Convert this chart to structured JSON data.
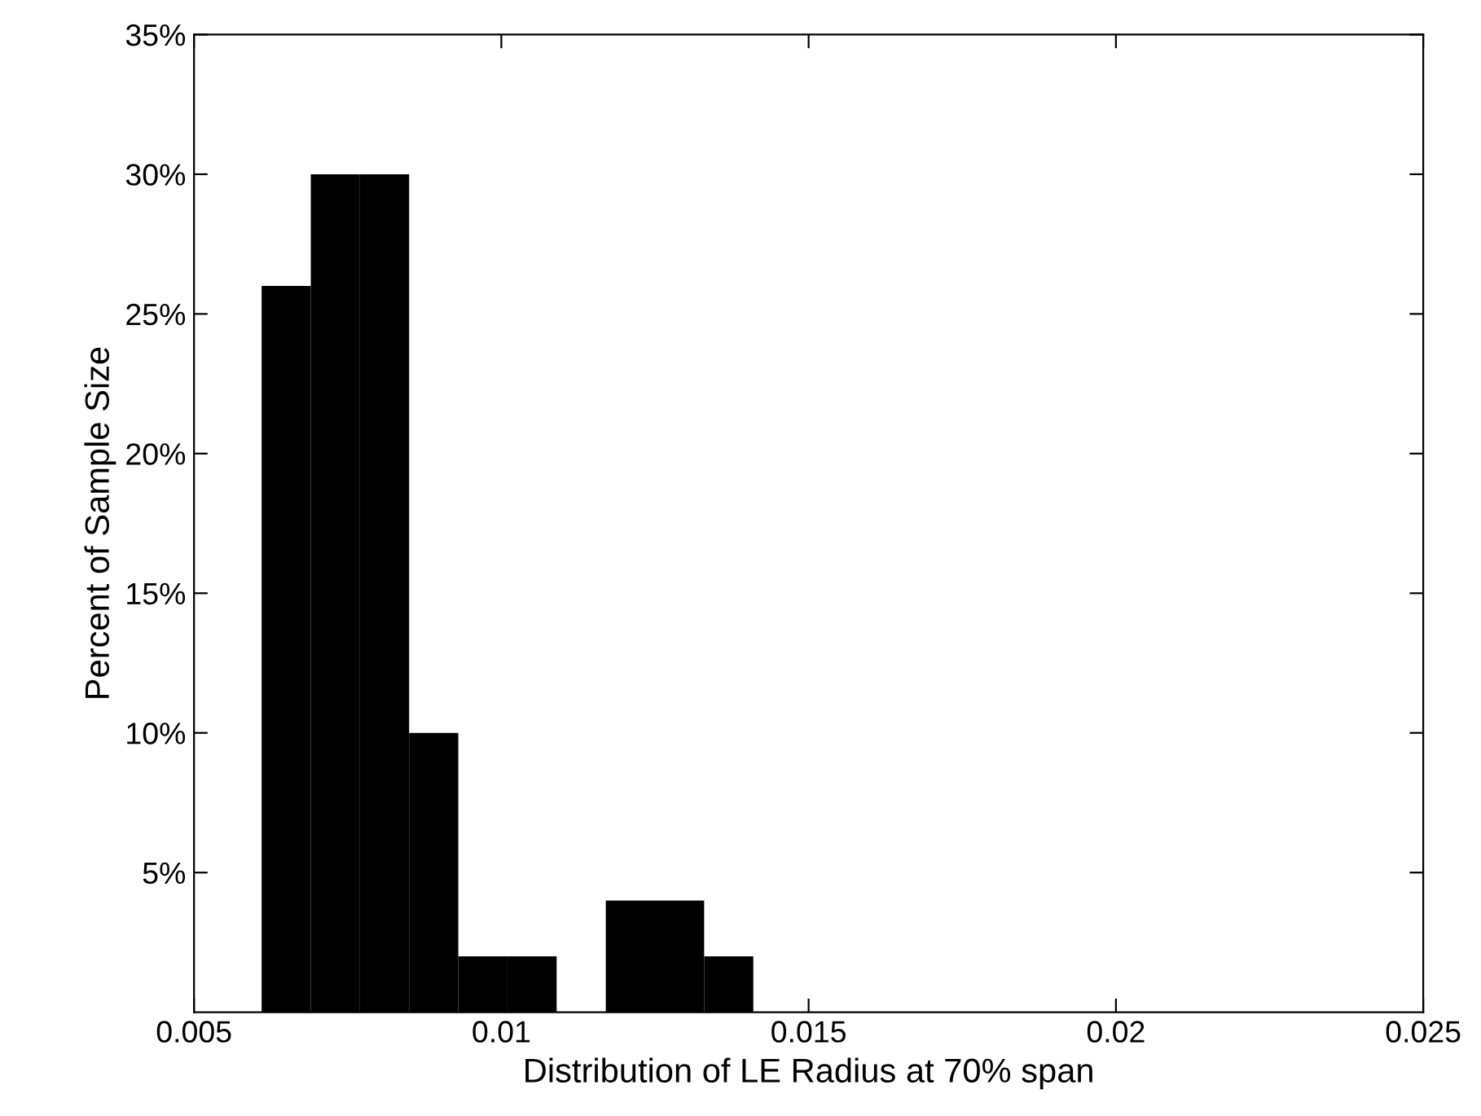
{
  "chart_data": {
    "type": "histogram",
    "xlabel": "Distribution of LE Radius at 70% span",
    "ylabel": "Percent of Sample Size",
    "bins": [
      0.0061,
      0.0069,
      0.0077,
      0.0085,
      0.0093,
      0.0101,
      0.0109,
      0.0117,
      0.0125,
      0.0133,
      0.0141
    ],
    "values": [
      26,
      30,
      30,
      10,
      2,
      2,
      0,
      4,
      4,
      2
    ],
    "color": "#000000",
    "xlim": [
      0.005,
      0.025
    ],
    "xticks": [
      0.005,
      0.01,
      0.015,
      0.02,
      0.025
    ],
    "ylim": [
      0,
      35
    ],
    "yticks": [
      {
        "value": 5,
        "label": "5%"
      },
      {
        "value": 10,
        "label": "10%"
      },
      {
        "value": 15,
        "label": "15%"
      },
      {
        "value": 20,
        "label": "20%"
      },
      {
        "value": 25,
        "label": "25%"
      },
      {
        "value": 30,
        "label": "30%"
      },
      {
        "value": 35,
        "label": "35%"
      }
    ],
    "grid": false
  }
}
